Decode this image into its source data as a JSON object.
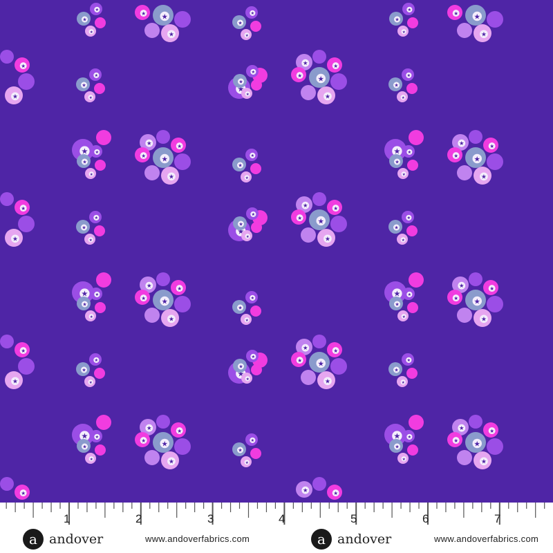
{
  "colors": {
    "background": "#4f25a6",
    "violet": "#9b4ee6",
    "light_violet": "#c083ef",
    "pink": "#f13ce0",
    "pale_pink": "#e6a6f0",
    "blue_grey": "#8a9bcc",
    "star": "#4f25a6"
  },
  "ruler": {
    "numbers": [
      "1",
      "2",
      "3",
      "4",
      "5",
      "6",
      "7"
    ]
  },
  "brands": [
    {
      "logo": "a",
      "name": "andover",
      "url": "www.andoverfabrics.com"
    },
    {
      "logo": "a",
      "name": "andover",
      "url": "www.andoverfabrics.com"
    }
  ]
}
